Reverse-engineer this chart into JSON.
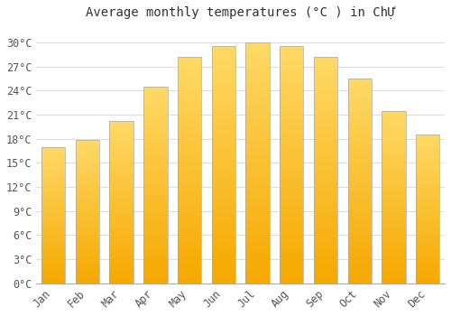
{
  "title": "Average monthly temperatures (°C ) in ChỰ",
  "months": [
    "Jan",
    "Feb",
    "Mar",
    "Apr",
    "May",
    "Jun",
    "Jul",
    "Aug",
    "Sep",
    "Oct",
    "Nov",
    "Dec"
  ],
  "temperatures": [
    17.0,
    17.8,
    20.2,
    24.5,
    28.2,
    29.5,
    30.0,
    29.5,
    28.2,
    25.5,
    21.5,
    18.5
  ],
  "bar_color_bottom": "#F5A800",
  "bar_color_top": "#FFD966",
  "bar_edge_color": "#AAAAAA",
  "background_color": "#FFFFFF",
  "plot_bg_color": "#FFFFFF",
  "grid_color": "#DDDDDD",
  "ytick_labels": [
    "0°C",
    "3°C",
    "6°C",
    "9°C",
    "12°C",
    "15°C",
    "18°C",
    "21°C",
    "24°C",
    "27°C",
    "30°C"
  ],
  "ytick_values": [
    0,
    3,
    6,
    9,
    12,
    15,
    18,
    21,
    24,
    27,
    30
  ],
  "ylim": [
    0,
    32
  ],
  "title_fontsize": 10,
  "tick_fontsize": 8.5,
  "font_family": "monospace",
  "bar_width": 0.7,
  "dpi": 100,
  "figwidth": 5.0,
  "figheight": 3.5
}
